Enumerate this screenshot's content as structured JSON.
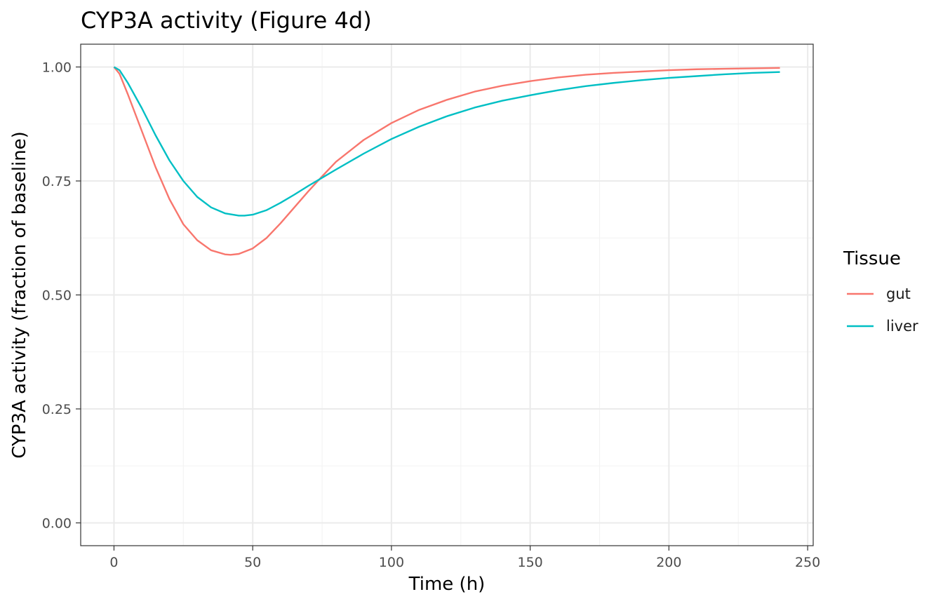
{
  "chart_data": {
    "type": "line",
    "title": "CYP3A activity (Figure 4d)",
    "xlabel": "Time (h)",
    "ylabel": "CYP3A activity (fraction of baseline)",
    "xlim": [
      -12,
      252
    ],
    "ylim": [
      -0.05,
      1.05
    ],
    "x_ticks": [
      0,
      50,
      100,
      150,
      200,
      250
    ],
    "x_tick_labels": [
      "0",
      "50",
      "100",
      "150",
      "200",
      "250"
    ],
    "y_ticks": [
      0,
      0.25,
      0.5,
      0.75,
      1.0
    ],
    "y_tick_labels": [
      "0.00",
      "0.25",
      "0.50",
      "0.75",
      "1.00"
    ],
    "grid": true,
    "legend": {
      "title": "Tissue",
      "position": "right"
    },
    "series": [
      {
        "name": "gut",
        "color": "#F8766D",
        "x": [
          0,
          2,
          5,
          10,
          15,
          20,
          25,
          30,
          35,
          40,
          42,
          45,
          50,
          55,
          60,
          65,
          70,
          75,
          80,
          90,
          100,
          110,
          120,
          130,
          140,
          150,
          160,
          170,
          180,
          190,
          200,
          210,
          220,
          230,
          240
        ],
        "y": [
          1.0,
          0.985,
          0.94,
          0.86,
          0.78,
          0.71,
          0.655,
          0.62,
          0.598,
          0.589,
          0.588,
          0.59,
          0.602,
          0.625,
          0.657,
          0.692,
          0.727,
          0.76,
          0.792,
          0.84,
          0.877,
          0.906,
          0.928,
          0.946,
          0.959,
          0.969,
          0.977,
          0.983,
          0.987,
          0.99,
          0.993,
          0.995,
          0.996,
          0.997,
          0.998
        ]
      },
      {
        "name": "liver",
        "color": "#00BFC4",
        "x": [
          0,
          2,
          5,
          10,
          15,
          20,
          25,
          30,
          35,
          40,
          45,
          47,
          50,
          55,
          60,
          65,
          70,
          75,
          80,
          90,
          100,
          110,
          120,
          130,
          140,
          150,
          160,
          170,
          180,
          190,
          200,
          210,
          220,
          230,
          240
        ],
        "y": [
          1.0,
          0.993,
          0.965,
          0.91,
          0.85,
          0.795,
          0.75,
          0.715,
          0.692,
          0.679,
          0.674,
          0.674,
          0.676,
          0.686,
          0.702,
          0.72,
          0.739,
          0.757,
          0.775,
          0.81,
          0.842,
          0.869,
          0.892,
          0.911,
          0.926,
          0.938,
          0.949,
          0.958,
          0.965,
          0.971,
          0.976,
          0.98,
          0.984,
          0.987,
          0.989
        ]
      }
    ]
  }
}
